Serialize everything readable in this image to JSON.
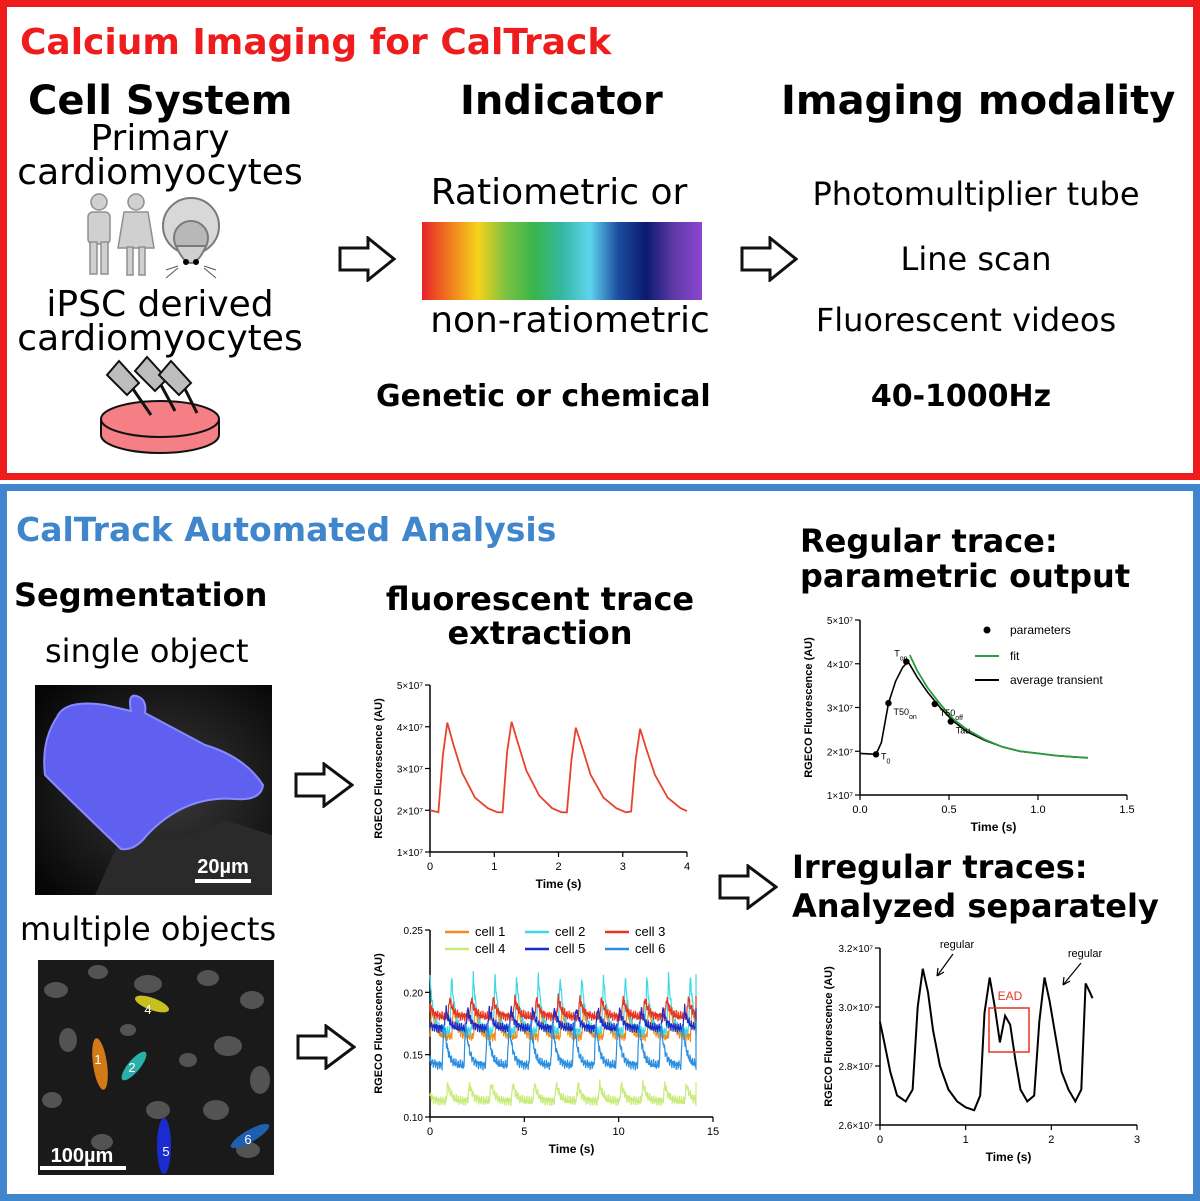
{
  "top": {
    "title": "Calcium Imaging for CalTrack",
    "cell_system": {
      "heading": "Cell System",
      "primary": [
        "Primary",
        "cardiomyocytes"
      ],
      "ipsc": [
        "iPSC derived",
        "cardiomyocytes"
      ]
    },
    "indicator": {
      "heading": "Indicator",
      "line1": "Ratiometric or",
      "line2": "non-ratiometric",
      "type": "Genetic or chemical",
      "spectrum_colors": [
        "#e8232a",
        "#f07c1e",
        "#f6d21a",
        "#7cc242",
        "#38b54a",
        "#33b8a2",
        "#5fd4ee",
        "#1c4ea0",
        "#0b1a70",
        "#5f3aa8",
        "#8b46d0"
      ]
    },
    "modality": {
      "heading": "Imaging modality",
      "items": [
        "Photomultiplier tube",
        "Line scan",
        "Fluorescent videos"
      ],
      "rate": "40-1000Hz"
    }
  },
  "bottom": {
    "title": "CalTrack Automated Analysis",
    "segmentation": {
      "heading": "Segmentation",
      "single": "single object",
      "multiple": "multiple objects",
      "scale_single": "20µm",
      "scale_multiple": "100µm",
      "cell_labels": [
        "1",
        "2",
        "4",
        "5",
        "6"
      ]
    },
    "extraction": {
      "heading": [
        "fluorescent trace",
        "extraction"
      ]
    },
    "regular": {
      "heading": [
        "Regular trace:",
        "parametric output"
      ]
    },
    "irregular": {
      "heading": [
        "Irregular traces:",
        "Analyzed separately"
      ]
    }
  },
  "chart_data": [
    {
      "id": "trace_single",
      "type": "line",
      "xlabel": "Time (s)",
      "ylabel": "RGECO Fluorescence (AU)",
      "xlim": [
        0,
        4
      ],
      "ylim": [
        10000000.0,
        50000000.0
      ],
      "xticks": [
        "0",
        "1",
        "2",
        "3",
        "4"
      ],
      "yticks": [
        "1×10⁷",
        "2×10⁷",
        "3×10⁷",
        "4×10⁷",
        "5×10⁷"
      ],
      "series": [
        {
          "color": "#e8432a",
          "x": [
            0,
            0.13,
            0.2,
            0.27,
            0.36,
            0.5,
            0.7,
            0.9,
            1.05,
            1.13,
            1.2,
            1.27,
            1.36,
            1.5,
            1.7,
            1.9,
            2.05,
            2.13,
            2.2,
            2.27,
            2.36,
            2.5,
            2.7,
            2.9,
            3.05,
            3.13,
            3.2,
            3.27,
            3.36,
            3.5,
            3.7,
            3.9,
            4.0
          ],
          "y": [
            20000000.0,
            19500000.0,
            33000000.0,
            41000000.0,
            36000000.0,
            29000000.0,
            23000000.0,
            20500000.0,
            19500000.0,
            19500000.0,
            34000000.0,
            41200000.0,
            36500000.0,
            29500000.0,
            23500000.0,
            20500000.0,
            19500000.0,
            19500000.0,
            32000000.0,
            39800000.0,
            35500000.0,
            28500000.0,
            23000000.0,
            20500000.0,
            19500000.0,
            19700000.0,
            32000000.0,
            39500000.0,
            35000000.0,
            28500000.0,
            23000000.0,
            20500000.0,
            19800000.0
          ]
        }
      ]
    },
    {
      "id": "trace_multi",
      "type": "line",
      "xlabel": "Time (s)",
      "ylabel": "RGECO Fluorescence (AU)",
      "xlim": [
        0,
        15
      ],
      "ylim": [
        0.1,
        0.25
      ],
      "xticks": [
        "0",
        "5",
        "10",
        "15"
      ],
      "yticks": [
        "0.10",
        "0.15",
        "0.20",
        "0.25"
      ],
      "period": 1.15,
      "series": [
        {
          "name": "cell 1",
          "color": "#f28c1c",
          "base": 0.172,
          "amp": 0.025
        },
        {
          "name": "cell 2",
          "color": "#3fd8e6",
          "base": 0.182,
          "amp": 0.045
        },
        {
          "name": "cell 3",
          "color": "#e8351f",
          "base": 0.185,
          "amp": 0.015
        },
        {
          "name": "cell 4",
          "color": "#c8ec7a",
          "base": 0.117,
          "amp": 0.014
        },
        {
          "name": "cell 5",
          "color": "#1a2fc8",
          "base": 0.176,
          "amp": 0.016
        },
        {
          "name": "cell 6",
          "color": "#2a8fe0",
          "base": 0.152,
          "amp": 0.035
        }
      ]
    },
    {
      "id": "regular",
      "type": "line",
      "xlabel": "Time (s)",
      "ylabel": "RGECO Fluorescence (AU)",
      "xlim": [
        0,
        1.5
      ],
      "ylim": [
        10000000.0,
        50000000.0
      ],
      "xticks": [
        "0.0",
        "0.5",
        "1.0",
        "1.5"
      ],
      "yticks": [
        "1×10⁷",
        "2×10⁷",
        "3×10⁷",
        "4×10⁷",
        "5×10⁷"
      ],
      "legend": [
        "parameters",
        "fit",
        "average transient"
      ],
      "average": {
        "color": "#000000",
        "x": [
          0,
          0.09,
          0.12,
          0.16,
          0.2,
          0.24,
          0.27,
          0.32,
          0.38,
          0.45,
          0.52,
          0.6,
          0.7,
          0.8,
          0.9,
          1.0,
          1.1,
          1.2,
          1.28
        ],
        "y": [
          19500000.0,
          19300000.0,
          22000000.0,
          31000000.0,
          36000000.0,
          39200000.0,
          40500000.0,
          37000000.0,
          33500000.0,
          30000000.0,
          27000000.0,
          24500000.0,
          22500000.0,
          21000000.0,
          20000000.0,
          19500000.0,
          19000000.0,
          18700000.0,
          18500000.0
        ]
      },
      "fit": {
        "color": "#2a9d3a",
        "x": [
          0.28,
          0.32,
          0.38,
          0.45,
          0.52,
          0.6,
          0.7,
          0.8,
          0.9,
          1.0,
          1.1,
          1.2,
          1.28
        ],
        "y": [
          42000000.0,
          38500000.0,
          34500000.0,
          30800000.0,
          27500000.0,
          25000000.0,
          22700000.0,
          21000000.0,
          20000000.0,
          19500000.0,
          19000000.0,
          18700000.0,
          18500000.0
        ]
      },
      "params": [
        {
          "label": "T",
          "sub": "0",
          "x": 0.09,
          "y": 19300000.0
        },
        {
          "label": "T50",
          "sub": "on",
          "x": 0.16,
          "y": 31000000.0
        },
        {
          "label": "T",
          "sub": "on",
          "x": 0.26,
          "y": 40500000.0
        },
        {
          "label": "T50",
          "sub": "off",
          "x": 0.42,
          "y": 30800000.0
        },
        {
          "label": "Tau",
          "sub": "",
          "x": 0.51,
          "y": 26800000.0
        }
      ]
    },
    {
      "id": "irregular",
      "type": "line",
      "xlabel": "Time (s)",
      "ylabel": "RGECO Fluorescence (AU)",
      "xlim": [
        0,
        3
      ],
      "ylim": [
        26000000.0,
        32000000.0
      ],
      "xticks": [
        "0",
        "1",
        "2",
        "3"
      ],
      "yticks": [
        "2.6×10⁷",
        "2.8×10⁷",
        "3.0×10⁷",
        "3.2×10⁷"
      ],
      "annotations": [
        "regular",
        "regular",
        "EAD"
      ],
      "series": [
        {
          "color": "#000000",
          "x": [
            0,
            0.05,
            0.12,
            0.2,
            0.3,
            0.38,
            0.44,
            0.5,
            0.56,
            0.62,
            0.7,
            0.8,
            0.9,
            1.0,
            1.1,
            1.17,
            1.22,
            1.28,
            1.34,
            1.4,
            1.46,
            1.52,
            1.58,
            1.64,
            1.72,
            1.8,
            1.86,
            1.92,
            1.98,
            2.05,
            2.12,
            2.2,
            2.28,
            2.35,
            2.4,
            2.45,
            2.48
          ],
          "y": [
            29500000.0,
            28800000.0,
            27800000.0,
            27000000.0,
            26800000.0,
            27200000.0,
            30000000.0,
            31300000.0,
            30500000.0,
            29200000.0,
            28000000.0,
            27200000.0,
            26800000.0,
            26600000.0,
            26500000.0,
            27000000.0,
            29800000.0,
            31000000.0,
            30000000.0,
            28800000.0,
            29700000.0,
            29400000.0,
            28200000.0,
            27200000.0,
            26800000.0,
            27000000.0,
            29500000.0,
            31000000.0,
            30200000.0,
            29000000.0,
            27800000.0,
            27200000.0,
            26800000.0,
            27200000.0,
            30800000.0,
            30500000.0,
            30300000.0
          ]
        }
      ]
    }
  ]
}
